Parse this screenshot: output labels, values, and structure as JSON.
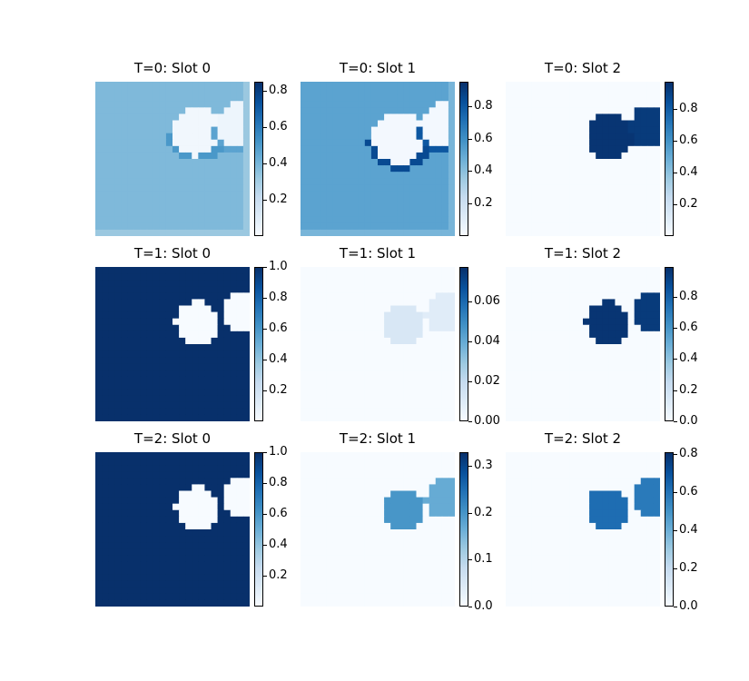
{
  "chart_data": {
    "type": "heatmap",
    "colormap": "Blues",
    "colors": {
      "low": "#f7fbff",
      "high": "#08306b"
    },
    "panels": [
      {
        "title": "T=0: Slot 0",
        "vmin": 0.0,
        "vmax": 0.85,
        "ticks": [
          "0.2",
          "0.4",
          "0.6",
          "0.8"
        ],
        "tick_values": [
          0.2,
          0.4,
          0.6,
          0.8
        ],
        "pattern": "bg",
        "bg_level": 0.45,
        "blobs": [
          {
            "cx": 0.66,
            "cy": 0.32,
            "r": 0.16,
            "level": 0.03,
            "ring": 0.6
          },
          {
            "cx": 0.93,
            "cy": 0.28,
            "r": 0.14,
            "level": 0.05,
            "ring": 0.55
          }
        ]
      },
      {
        "title": "T=0: Slot 1",
        "vmin": 0.0,
        "vmax": 0.95,
        "ticks": [
          "0.2",
          "0.4",
          "0.6",
          "0.8"
        ],
        "tick_values": [
          0.2,
          0.4,
          0.6,
          0.8
        ],
        "pattern": "bg",
        "bg_level": 0.55,
        "blobs": [
          {
            "cx": 0.64,
            "cy": 0.36,
            "r": 0.17,
            "level": 0.02,
            "ring": 0.9
          },
          {
            "cx": 0.93,
            "cy": 0.28,
            "r": 0.14,
            "level": 0.02,
            "ring": 0.85
          }
        ]
      },
      {
        "title": "T=0: Slot 2",
        "vmin": 0.0,
        "vmax": 0.97,
        "ticks": [
          "0.2",
          "0.4",
          "0.6",
          "0.8"
        ],
        "tick_values": [
          0.2,
          0.4,
          0.6,
          0.8
        ],
        "pattern": "fg",
        "bg_level": 0.0,
        "blobs": [
          {
            "cx": 0.68,
            "cy": 0.35,
            "r": 0.15,
            "level": 0.95,
            "ring": 0
          },
          {
            "cx": 0.94,
            "cy": 0.29,
            "r": 0.14,
            "level": 0.93,
            "ring": 0
          }
        ]
      },
      {
        "title": "T=1: Slot 0",
        "vmin": 0.0,
        "vmax": 1.0,
        "ticks": [
          "0.2",
          "0.4",
          "0.6",
          "0.8",
          "1.0"
        ],
        "tick_values": [
          0.2,
          0.4,
          0.6,
          0.8,
          1.0
        ],
        "pattern": "bg",
        "bg_level": 1.0,
        "blobs": [
          {
            "cx": 0.66,
            "cy": 0.36,
            "r": 0.14,
            "level": 0.0,
            "ring": 0
          },
          {
            "cx": 0.95,
            "cy": 0.3,
            "r": 0.13,
            "level": 0.0,
            "ring": 0
          }
        ]
      },
      {
        "title": "T=1: Slot 1",
        "vmin": 0.0,
        "vmax": 0.077,
        "ticks": [
          "0.00",
          "0.02",
          "0.04",
          "0.06"
        ],
        "tick_values": [
          0.0,
          0.02,
          0.04,
          0.06
        ],
        "pattern": "fg",
        "bg_level": 0.0,
        "blobs": [
          {
            "cx": 0.67,
            "cy": 0.37,
            "r": 0.14,
            "level": 0.012,
            "ring": 0
          },
          {
            "cx": 0.94,
            "cy": 0.3,
            "r": 0.13,
            "level": 0.009,
            "ring": 0
          }
        ]
      },
      {
        "title": "T=1: Slot 2",
        "vmin": 0.0,
        "vmax": 0.99,
        "ticks": [
          "0.0",
          "0.2",
          "0.4",
          "0.6",
          "0.8"
        ],
        "tick_values": [
          0.0,
          0.2,
          0.4,
          0.6,
          0.8
        ],
        "pattern": "fg",
        "bg_level": 0.0,
        "blobs": [
          {
            "cx": 0.66,
            "cy": 0.36,
            "r": 0.14,
            "level": 0.97,
            "ring": 0
          },
          {
            "cx": 0.95,
            "cy": 0.3,
            "r": 0.13,
            "level": 0.95,
            "ring": 0
          }
        ]
      },
      {
        "title": "T=2: Slot 0",
        "vmin": 0.0,
        "vmax": 1.0,
        "ticks": [
          "0.2",
          "0.4",
          "0.6",
          "0.8",
          "1.0"
        ],
        "tick_values": [
          0.2,
          0.4,
          0.6,
          0.8,
          1.0
        ],
        "pattern": "bg",
        "bg_level": 1.0,
        "blobs": [
          {
            "cx": 0.66,
            "cy": 0.36,
            "r": 0.14,
            "level": 0.0,
            "ring": 0
          },
          {
            "cx": 0.95,
            "cy": 0.3,
            "r": 0.13,
            "level": 0.0,
            "ring": 0
          }
        ]
      },
      {
        "title": "T=2: Slot 1",
        "vmin": 0.0,
        "vmax": 0.33,
        "ticks": [
          "0.0",
          "0.1",
          "0.2",
          "0.3"
        ],
        "tick_values": [
          0.0,
          0.1,
          0.2,
          0.3
        ],
        "pattern": "fg",
        "bg_level": 0.0,
        "blobs": [
          {
            "cx": 0.67,
            "cy": 0.37,
            "r": 0.14,
            "level": 0.2,
            "ring": 0
          },
          {
            "cx": 0.94,
            "cy": 0.3,
            "r": 0.13,
            "level": 0.17,
            "ring": 0
          }
        ]
      },
      {
        "title": "T=2: Slot 2",
        "vmin": 0.0,
        "vmax": 0.81,
        "ticks": [
          "0.0",
          "0.2",
          "0.4",
          "0.6",
          "0.8"
        ],
        "tick_values": [
          0.0,
          0.2,
          0.4,
          0.6,
          0.8
        ],
        "pattern": "fg",
        "bg_level": 0.0,
        "blobs": [
          {
            "cx": 0.66,
            "cy": 0.37,
            "r": 0.14,
            "level": 0.62,
            "ring": 0
          },
          {
            "cx": 0.95,
            "cy": 0.3,
            "r": 0.13,
            "level": 0.58,
            "ring": 0
          }
        ]
      }
    ]
  }
}
